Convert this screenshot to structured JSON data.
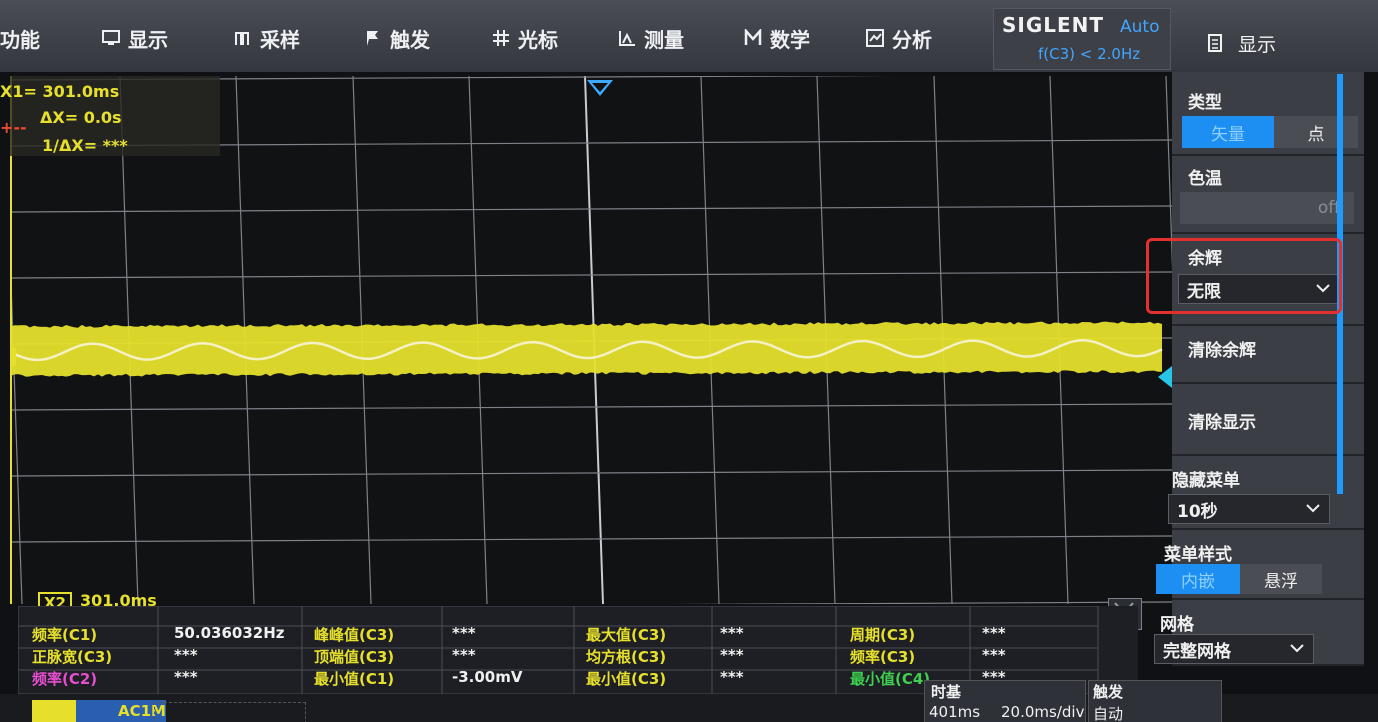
{
  "topbar": {
    "items": [
      {
        "label": "功能",
        "icon": "function-icon"
      },
      {
        "label": "显示",
        "icon": "display-icon"
      },
      {
        "label": "采样",
        "icon": "sampling-icon"
      },
      {
        "label": "触发",
        "icon": "flag-icon"
      },
      {
        "label": "光标",
        "icon": "cursor-icon"
      },
      {
        "label": "测量",
        "icon": "measure-icon"
      },
      {
        "label": "数学",
        "icon": "math-icon"
      },
      {
        "label": "分析",
        "icon": "analysis-icon"
      }
    ],
    "brand": "SIGLENT",
    "mode": "Auto",
    "trigger_freq": "f(C3) < 2.0Hz",
    "right_title": "显示",
    "accent": "#42a5ff"
  },
  "cursors": {
    "x1": "X1= 301.0ms",
    "dx": "ΔX= 0.0s",
    "inv_dx": "1/ΔX= ***",
    "x2_tag": "X2",
    "x2_value": "301.0ms",
    "color": "#e6e02c"
  },
  "trace": {
    "color": "#e6e02c",
    "channel": "1"
  },
  "panel": {
    "type_label": "类型",
    "type_options": [
      "矢量",
      "点"
    ],
    "type_selected": "矢量",
    "color_temp_label": "色温",
    "color_temp_value": "off",
    "persist_label": "余辉",
    "persist_value": "无限",
    "clear_persist": "清除余辉",
    "clear_display": "清除显示",
    "hide_menu_label": "隐藏菜单",
    "hide_menu_value": "10秒",
    "menu_style_label": "菜单样式",
    "menu_style_options": [
      "内嵌",
      "悬浮"
    ],
    "menu_style_selected": "内嵌",
    "grid_label": "网格",
    "grid_value": "完整网格",
    "highlight_color": "#e53030"
  },
  "measurements": [
    [
      {
        "label": "频率(C1)",
        "value": "50.036032Hz",
        "color": "#e6e02c"
      },
      {
        "label": "峰峰值(C3)",
        "value": "***",
        "color": "#e6e02c"
      },
      {
        "label": "最大值(C3)",
        "value": "***",
        "color": "#e6e02c"
      },
      {
        "label": "周期(C3)",
        "value": "***",
        "color": "#e6e02c"
      }
    ],
    [
      {
        "label": "正脉宽(C3)",
        "value": "***",
        "color": "#e6e02c"
      },
      {
        "label": "顶端值(C3)",
        "value": "***",
        "color": "#e6e02c"
      },
      {
        "label": "均方根(C3)",
        "value": "***",
        "color": "#e6e02c"
      },
      {
        "label": "频率(C3)",
        "value": "***",
        "color": "#e6e02c"
      }
    ],
    [
      {
        "label": "频率(C2)",
        "value": "***",
        "color": "#e64fd0"
      },
      {
        "label": "最小值(C1)",
        "value": "-3.00mV",
        "color": "#e6e02c"
      },
      {
        "label": "最小值(C3)",
        "value": "***",
        "color": "#e6e02c"
      },
      {
        "label": "最小值(C4)",
        "value": "***",
        "color": "#3fd04f"
      }
    ]
  ],
  "bottom": {
    "timebase_label": "时基",
    "timebase_pos": "401ms",
    "timebase_scale": "20.0ms/div",
    "trigger_label": "触发",
    "trigger_mode": "自动",
    "channel_coupling": "AC1M"
  }
}
